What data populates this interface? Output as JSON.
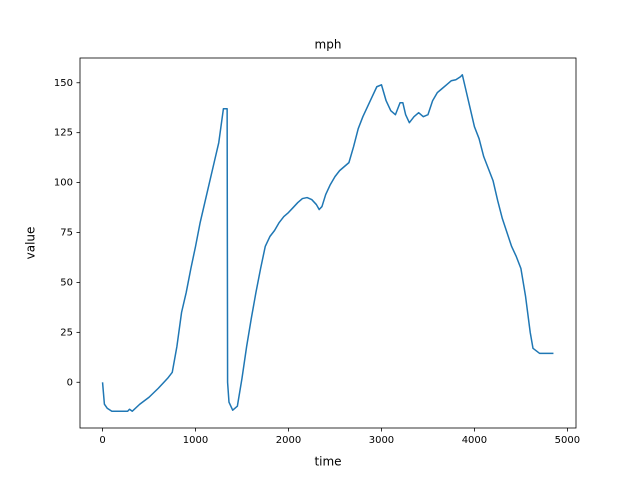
{
  "chart_data": {
    "type": "line",
    "title": "mph",
    "xlabel": "time",
    "ylabel": "value",
    "x": [
      0,
      20,
      50,
      100,
      200,
      270,
      290,
      320,
      400,
      500,
      600,
      700,
      750,
      800,
      850,
      900,
      950,
      1000,
      1050,
      1100,
      1150,
      1200,
      1250,
      1300,
      1340,
      1345,
      1360,
      1400,
      1450,
      1500,
      1550,
      1600,
      1650,
      1700,
      1750,
      1800,
      1850,
      1900,
      1950,
      2000,
      2050,
      2100,
      2150,
      2200,
      2250,
      2300,
      2330,
      2360,
      2400,
      2450,
      2500,
      2550,
      2600,
      2650,
      2700,
      2750,
      2800,
      2850,
      2900,
      2950,
      3000,
      3050,
      3100,
      3150,
      3200,
      3230,
      3260,
      3300,
      3350,
      3400,
      3450,
      3500,
      3550,
      3600,
      3650,
      3700,
      3750,
      3800,
      3850,
      3870,
      3900,
      3950,
      4000,
      4050,
      4100,
      4200,
      4250,
      4300,
      4350,
      4400,
      4450,
      4500,
      4550,
      4600,
      4630,
      4700,
      4850
    ],
    "series": [
      {
        "name": "mph",
        "color": "#1f77b4",
        "values": [
          0,
          -11,
          -13,
          -14.5,
          -14.5,
          -14.5,
          -13.5,
          -14.5,
          -11,
          -7.5,
          -3,
          2,
          5,
          18,
          35,
          45,
          57,
          68,
          80,
          90,
          100,
          110,
          120,
          137,
          137,
          0,
          -10,
          -14,
          -12,
          2,
          18,
          32,
          45,
          57,
          68,
          73,
          76,
          80,
          83,
          85,
          87.5,
          90,
          92,
          92.5,
          91.5,
          89,
          86.5,
          88,
          94,
          99,
          103,
          106,
          108,
          110,
          118,
          127,
          133,
          138,
          143,
          148,
          149,
          141,
          136,
          134,
          140,
          140,
          134,
          130,
          133,
          135,
          133,
          134,
          141,
          145,
          147,
          149,
          151,
          151.5,
          153,
          154,
          148,
          138,
          128,
          122,
          113,
          101,
          91,
          82,
          75,
          68,
          63,
          57,
          43,
          25,
          17,
          14.5,
          14.5
        ]
      }
    ],
    "xlim": [
      -242.5,
      5092.5
    ],
    "xticks": [
      0,
      1000,
      2000,
      3000,
      4000,
      5000
    ],
    "ylim": [
      -22.9,
      162.4
    ],
    "yticks": [
      0,
      25,
      50,
      75,
      100,
      125,
      150
    ]
  }
}
